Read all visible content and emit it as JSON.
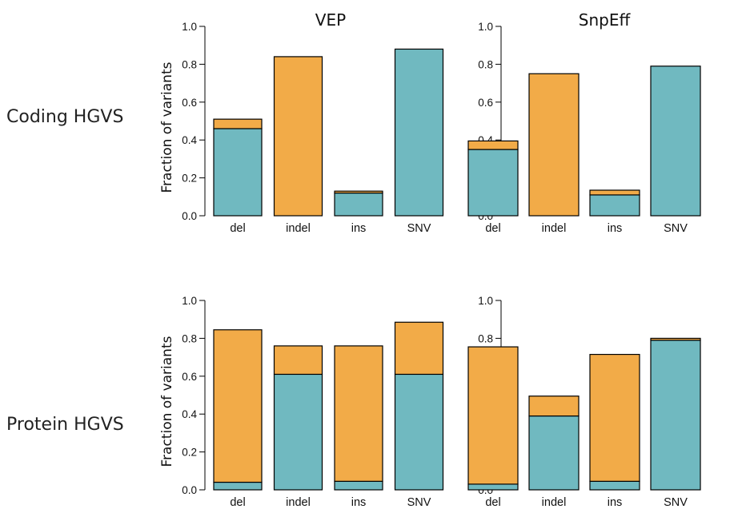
{
  "rows": [
    "Coding HGVS",
    "Protein HGVS"
  ],
  "columns": [
    "VEP",
    "SnpEff"
  ],
  "ylabel": "Fraction of variants",
  "colors": {
    "base": "#70b9c0",
    "top": "#f2ab48",
    "outline": "#000000"
  },
  "chart_data": [
    {
      "type": "bar",
      "stacked": true,
      "row": "Coding HGVS",
      "column": "VEP",
      "categories": [
        "del",
        "indel",
        "ins",
        "SNV"
      ],
      "series": [
        {
          "values": [
            0.46,
            0.0,
            0.12,
            0.88
          ]
        },
        {
          "values": [
            0.05,
            0.84,
            0.01,
            0.0
          ]
        }
      ],
      "ylabel": "Fraction of variants",
      "ylim": [
        0,
        1
      ],
      "yticks": [
        "0.0",
        "0.2",
        "0.4",
        "0.6",
        "0.8",
        "1.0"
      ]
    },
    {
      "type": "bar",
      "stacked": true,
      "row": "Coding HGVS",
      "column": "SnpEff",
      "categories": [
        "del",
        "indel",
        "ins",
        "SNV"
      ],
      "series": [
        {
          "values": [
            0.35,
            0.0,
            0.11,
            0.79
          ]
        },
        {
          "values": [
            0.045,
            0.75,
            0.025,
            0.0
          ]
        }
      ],
      "ylabel": "",
      "ylim": [
        0,
        1
      ],
      "yticks": [
        "0.0",
        "0.2",
        "0.4",
        "0.6",
        "0.8",
        "1.0"
      ]
    },
    {
      "type": "bar",
      "stacked": true,
      "row": "Protein HGVS",
      "column": "VEP",
      "categories": [
        "del",
        "indel",
        "ins",
        "SNV"
      ],
      "series": [
        {
          "values": [
            0.04,
            0.61,
            0.045,
            0.61
          ]
        },
        {
          "values": [
            0.805,
            0.15,
            0.715,
            0.275
          ]
        }
      ],
      "ylabel": "Fraction of variants",
      "ylim": [
        0,
        1
      ],
      "yticks": [
        "0.0",
        "0.2",
        "0.4",
        "0.6",
        "0.8",
        "1.0"
      ]
    },
    {
      "type": "bar",
      "stacked": true,
      "row": "Protein HGVS",
      "column": "SnpEff",
      "categories": [
        "del",
        "indel",
        "ins",
        "SNV"
      ],
      "series": [
        {
          "values": [
            0.03,
            0.39,
            0.045,
            0.79
          ]
        },
        {
          "values": [
            0.725,
            0.105,
            0.67,
            0.01
          ]
        }
      ],
      "ylabel": "",
      "ylim": [
        0,
        1
      ],
      "yticks": [
        "0.0",
        "0.2",
        "0.4",
        "0.6",
        "0.8",
        "1.0"
      ]
    }
  ]
}
